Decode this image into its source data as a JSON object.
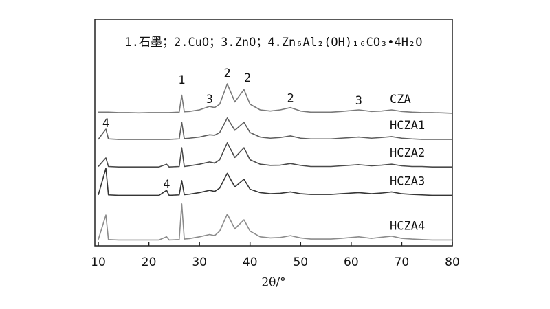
{
  "chart_data": {
    "type": "line",
    "legend_text": "1.石墨；2.CuO；3.ZnO；4.Zn₆Al₂(OH)₁₆CO₃•4H₂O",
    "x_label": "2θ/°",
    "xlim": [
      10,
      80
    ],
    "xticks": [
      10,
      20,
      30,
      40,
      50,
      60,
      70,
      80
    ],
    "ylim": [
      0,
      100
    ],
    "x": [
      10,
      11.5,
      12,
      14,
      16,
      18,
      20,
      22,
      23.5,
      24,
      26,
      26.5,
      27,
      28,
      30,
      32,
      33,
      34,
      35.5,
      37,
      38.8,
      40,
      42,
      44,
      46,
      48,
      50,
      52,
      54,
      56,
      58,
      61.5,
      64,
      66,
      68,
      70,
      72,
      74,
      76,
      78,
      80
    ],
    "series": [
      {
        "name": "CZA",
        "color": "#7a7a7a",
        "values": [
          59,
          59,
          59,
          58.8,
          58.8,
          58.7,
          58.8,
          58.8,
          58.8,
          58.8,
          59,
          66.5,
          59.2,
          59.3,
          60,
          61.5,
          61,
          62.5,
          71.5,
          63.5,
          69,
          62.5,
          60,
          59.5,
          60,
          61,
          59.5,
          59,
          59,
          59,
          59.3,
          60,
          59.3,
          59.5,
          60,
          59.3,
          59,
          58.8,
          58.8,
          58.7,
          58.5
        ]
      },
      {
        "name": "HCZA1",
        "color": "#5e5e5e",
        "values": [
          47,
          51.5,
          47.2,
          47,
          47,
          47,
          47,
          47,
          47,
          47,
          47.2,
          54.5,
          47.3,
          47.5,
          48,
          49,
          48.8,
          50,
          56.4,
          51,
          54.5,
          50,
          48,
          47.5,
          47.8,
          48.5,
          47.5,
          47.2,
          47.2,
          47.2,
          47.5,
          48,
          47.5,
          47.8,
          48.2,
          47.5,
          47.2,
          47,
          47,
          47,
          47
        ]
      },
      {
        "name": "HCZA2",
        "color": "#4a4a4a",
        "values": [
          35,
          38.8,
          35,
          34.8,
          34.8,
          34.8,
          34.8,
          34.8,
          36,
          34.8,
          35,
          43.3,
          35,
          35.3,
          36,
          37,
          36.5,
          38,
          45.5,
          39,
          43.3,
          38,
          36,
          35.5,
          35.6,
          36.3,
          35.5,
          35,
          35,
          35,
          35.3,
          35.8,
          35.3,
          35.6,
          36,
          35.3,
          35,
          35,
          34.8,
          34.8,
          34.8
        ]
      },
      {
        "name": "HCZA3",
        "color": "#353535",
        "values": [
          22.5,
          34.2,
          22.5,
          22.3,
          22.3,
          22.3,
          22.3,
          22.3,
          24.5,
          22.3,
          22.5,
          28.8,
          22.6,
          22.8,
          23.5,
          24.5,
          24,
          25.5,
          32,
          26,
          29.4,
          25,
          23.5,
          23,
          23.2,
          23.8,
          23,
          22.7,
          22.7,
          22.7,
          23,
          23.5,
          23,
          23.3,
          23.8,
          23,
          22.7,
          22.5,
          22.3,
          22.3,
          22.3
        ]
      },
      {
        "name": "HCZA4",
        "color": "#8c8c8c",
        "values": [
          2.8,
          13.6,
          2.8,
          2.6,
          2.6,
          2.6,
          2.6,
          2.6,
          4,
          2.6,
          2.8,
          18.5,
          3,
          3.2,
          4,
          5,
          4.5,
          6.5,
          14,
          7.5,
          11.5,
          6.5,
          4,
          3.5,
          3.7,
          4.5,
          3.5,
          3,
          3,
          3,
          3.3,
          4,
          3.3,
          3.8,
          4.3,
          3.3,
          3,
          2.8,
          2.6,
          2.6,
          2.6
        ]
      }
    ],
    "annotations": [
      {
        "text": "1",
        "x": 26.5,
        "y": 73
      },
      {
        "text": "3",
        "x": 32,
        "y": 64.5
      },
      {
        "text": "2",
        "x": 35.5,
        "y": 76
      },
      {
        "text": "2",
        "x": 39.5,
        "y": 74
      },
      {
        "text": "2",
        "x": 48,
        "y": 65
      },
      {
        "text": "3",
        "x": 61.5,
        "y": 64
      },
      {
        "text": "4",
        "x": 11.5,
        "y": 54
      },
      {
        "text": "4",
        "x": 23.5,
        "y": 27
      }
    ]
  }
}
